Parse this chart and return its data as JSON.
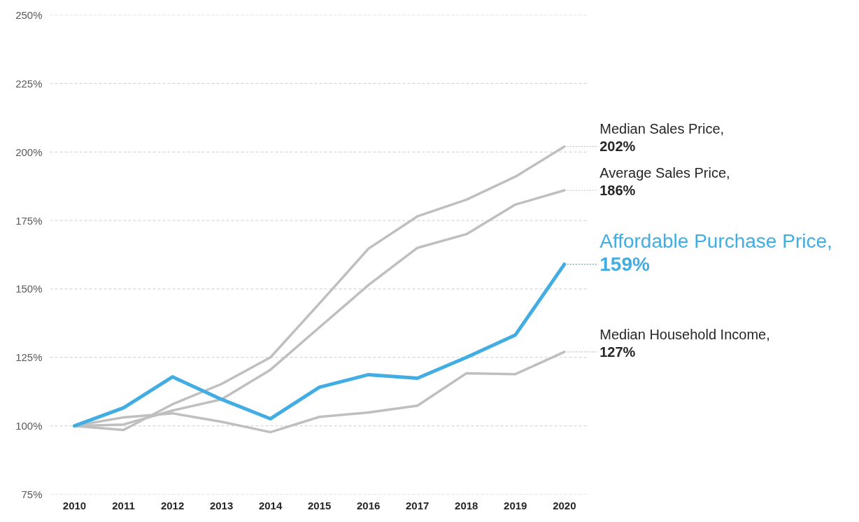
{
  "chart_data": {
    "type": "line",
    "categories": [
      "2010",
      "2011",
      "2012",
      "2013",
      "2014",
      "2015",
      "2016",
      "2017",
      "2018",
      "2019",
      "2020"
    ],
    "ylim": [
      75,
      250
    ],
    "yticks": [
      {
        "value": 75,
        "label": "75%"
      },
      {
        "value": 100,
        "label": "100%"
      },
      {
        "value": 125,
        "label": "125%"
      },
      {
        "value": 150,
        "label": "150%"
      },
      {
        "value": 175,
        "label": "175%"
      },
      {
        "value": 200,
        "label": "200%"
      },
      {
        "value": 225,
        "label": "225%"
      },
      {
        "value": 250,
        "label": "250%"
      }
    ],
    "grid": "y",
    "marker": "none",
    "line_style": "solid",
    "series": [
      {
        "name": "Median Sales Price,",
        "color": "#bfbfbf",
        "values": [
          100,
          98.5,
          107.9,
          115.3,
          125,
          144.7,
          164.7,
          176.5,
          182.6,
          191,
          202
        ],
        "value_labels": [
          null,
          null,
          null,
          null,
          null,
          null,
          null,
          null,
          null,
          null,
          "202%"
        ]
      },
      {
        "name": "Average Sales Price,",
        "color": "#bfbfbf",
        "values": [
          100,
          100.5,
          105.6,
          109.7,
          120.5,
          136,
          151.4,
          165,
          170,
          180.8,
          186
        ],
        "value_labels": [
          null,
          null,
          null,
          null,
          null,
          null,
          null,
          null,
          null,
          null,
          "186%"
        ]
      },
      {
        "name": "Median Household Income,",
        "color": "#bfbfbf",
        "values": [
          100,
          103.1,
          104.6,
          101.5,
          97.7,
          103.3,
          104.9,
          107.4,
          119.2,
          118.9,
          127
        ],
        "value_labels": [
          null,
          null,
          null,
          null,
          null,
          null,
          null,
          null,
          null,
          null,
          "127%"
        ]
      },
      {
        "name": "Affordable Purchase Price,",
        "color": "#41ade2",
        "values": [
          100,
          106.6,
          117.9,
          109.7,
          102.6,
          114.1,
          118.7,
          117.4,
          125,
          133.2,
          159
        ],
        "value_labels": [
          null,
          null,
          null,
          null,
          null,
          null,
          null,
          null,
          null,
          null,
          "159%"
        ]
      }
    ]
  }
}
